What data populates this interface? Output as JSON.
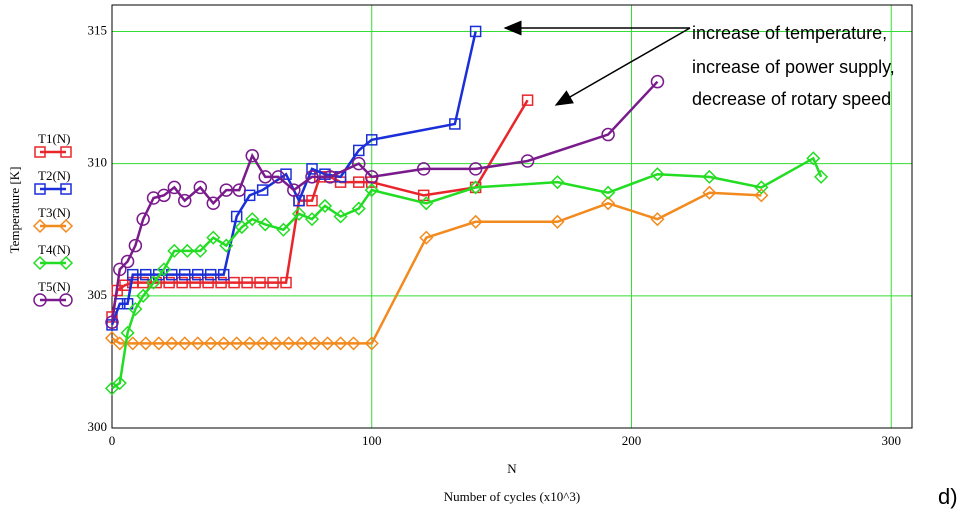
{
  "chart_data": {
    "type": "line",
    "ylabel": "Temperature [K]",
    "xlabel": "N",
    "xlabel2": "Number of cycles (x10^3)",
    "annotation_lines": [
      "increase of temperature,",
      "increase of power supply,",
      "decrease of rotary speed"
    ],
    "panel_label": "d)",
    "xlim": [
      0,
      308
    ],
    "ylim": [
      300,
      316
    ],
    "xticks": [
      0,
      100,
      200,
      300
    ],
    "yticks": [
      300,
      305,
      310,
      315
    ],
    "grid": true,
    "grid_color": "#33dd33",
    "series": [
      {
        "name": "T1(N)",
        "color": "#e8262b",
        "marker": "square",
        "x": [
          0,
          2,
          5,
          8,
          12,
          17,
          22,
          27,
          32,
          37,
          42,
          47,
          52,
          57,
          62,
          67,
          72,
          77,
          80,
          84,
          88,
          95,
          100,
          120,
          140,
          160
        ],
        "values": [
          304.2,
          305.2,
          305.4,
          305.5,
          305.5,
          305.5,
          305.5,
          305.5,
          305.5,
          305.5,
          305.5,
          305.5,
          305.5,
          305.5,
          305.5,
          305.5,
          308.6,
          308.6,
          309.5,
          309.5,
          309.3,
          309.3,
          309.3,
          308.8,
          309.1,
          312.4
        ]
      },
      {
        "name": "T2(N)",
        "color": "#1a2fd8",
        "marker": "square",
        "x": [
          0,
          3,
          6,
          8,
          13,
          18,
          23,
          28,
          33,
          38,
          43,
          48,
          53,
          58,
          67,
          72,
          77,
          82,
          88,
          95,
          100,
          132,
          140
        ],
        "values": [
          303.9,
          304.7,
          304.7,
          305.8,
          305.8,
          305.8,
          305.8,
          305.8,
          305.8,
          305.8,
          305.8,
          308.0,
          308.8,
          309.0,
          309.6,
          308.6,
          309.8,
          309.6,
          309.5,
          310.5,
          310.9,
          311.5,
          315.0
        ]
      },
      {
        "name": "T3(N)",
        "color": "#f28a1e",
        "marker": "diamond",
        "x": [
          0,
          3,
          8,
          13,
          18,
          23,
          28,
          33,
          38,
          43,
          48,
          53,
          58,
          63,
          68,
          73,
          78,
          83,
          88,
          93,
          100,
          121,
          140,
          171.5,
          191,
          210,
          230,
          250
        ],
        "values": [
          303.4,
          303.2,
          303.2,
          303.2,
          303.2,
          303.2,
          303.2,
          303.2,
          303.2,
          303.2,
          303.2,
          303.2,
          303.2,
          303.2,
          303.2,
          303.2,
          303.2,
          303.2,
          303.2,
          303.2,
          303.2,
          307.2,
          307.8,
          307.8,
          308.5,
          307.9,
          308.9,
          308.8
        ]
      },
      {
        "name": "T4(N)",
        "color": "#22dd22",
        "marker": "diamond",
        "x": [
          0,
          3,
          6,
          9,
          12,
          16,
          20,
          24,
          29,
          34,
          39,
          44,
          50,
          54,
          59,
          66,
          72,
          77,
          82,
          88,
          95,
          100,
          121,
          140,
          171.5,
          191,
          210,
          230,
          250,
          270,
          273
        ],
        "values": [
          301.5,
          301.7,
          303.6,
          304.5,
          305.0,
          305.5,
          306.0,
          306.7,
          306.7,
          306.7,
          307.2,
          306.9,
          307.6,
          307.9,
          307.7,
          307.5,
          308.1,
          307.9,
          308.4,
          308.0,
          308.3,
          309.0,
          308.5,
          309.1,
          309.3,
          308.9,
          309.6,
          309.5,
          309.1,
          310.2,
          309.5
        ]
      },
      {
        "name": "T5(N)",
        "color": "#7a1b8c",
        "marker": "circle",
        "x": [
          0,
          3,
          6,
          9,
          12,
          16,
          20,
          24,
          28,
          34,
          39,
          44,
          49,
          54,
          59,
          64,
          70,
          77,
          84,
          95,
          100,
          120,
          140,
          160,
          191,
          210
        ],
        "values": [
          304.0,
          306.0,
          306.3,
          306.9,
          307.9,
          308.7,
          308.8,
          309.1,
          308.6,
          309.1,
          308.5,
          309.0,
          309.0,
          310.3,
          309.5,
          309.5,
          309.0,
          309.5,
          309.5,
          310.0,
          309.5,
          309.8,
          309.8,
          310.1,
          311.1,
          313.1
        ]
      }
    ]
  }
}
